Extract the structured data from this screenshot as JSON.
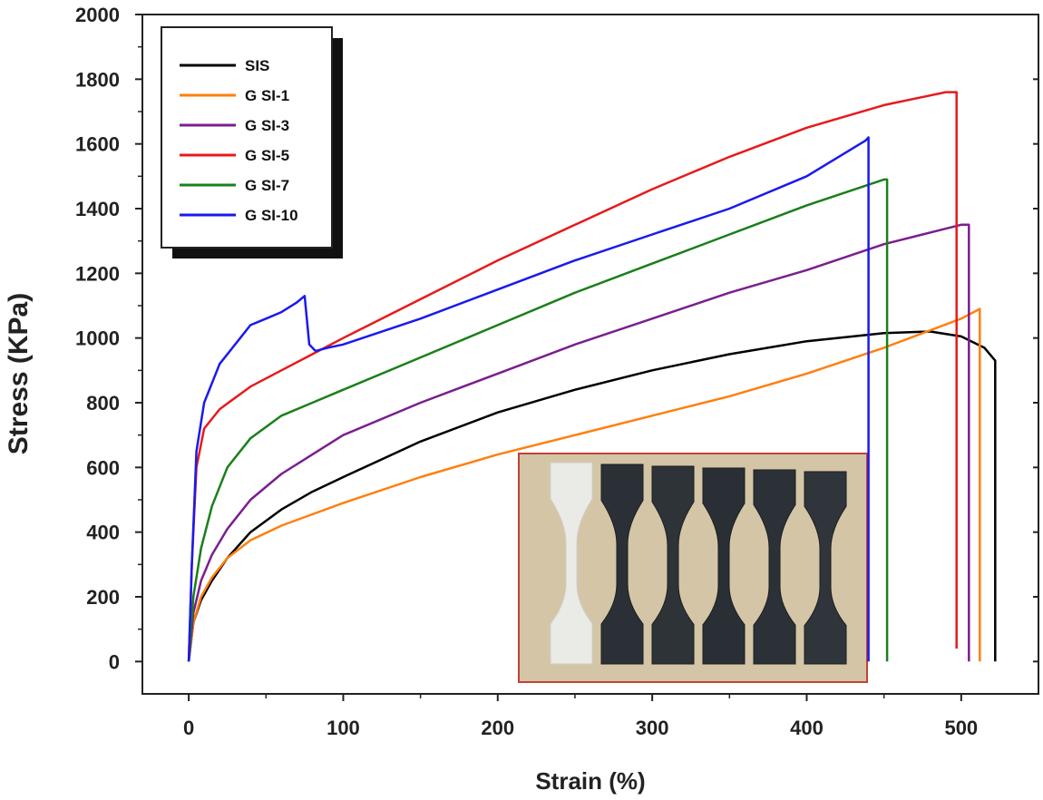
{
  "chart_data": {
    "type": "line",
    "title": "",
    "xlabel": "Strain (%)",
    "ylabel": "Stress (KPa)",
    "xlim": [
      -30,
      550
    ],
    "ylim": [
      -100,
      2000
    ],
    "xticks": [
      0,
      100,
      200,
      300,
      400,
      500
    ],
    "yticks": [
      0,
      200,
      400,
      600,
      800,
      1000,
      1200,
      1400,
      1600,
      1800,
      2000
    ],
    "grid": false,
    "legend_position": "top-left",
    "series": [
      {
        "name": "SIS",
        "color": "#000000",
        "x": [
          0,
          3,
          8,
          15,
          25,
          40,
          60,
          80,
          100,
          150,
          200,
          250,
          300,
          350,
          400,
          450,
          480,
          500,
          515,
          522,
          522
        ],
        "y": [
          0,
          120,
          190,
          250,
          320,
          400,
          470,
          525,
          570,
          680,
          770,
          840,
          900,
          950,
          990,
          1015,
          1020,
          1005,
          970,
          930,
          0
        ]
      },
      {
        "name": "G SI-1",
        "color": "#ff7f0e",
        "x": [
          0,
          3,
          8,
          15,
          25,
          40,
          60,
          80,
          100,
          150,
          200,
          250,
          300,
          350,
          400,
          450,
          500,
          512,
          512
        ],
        "y": [
          0,
          120,
          200,
          260,
          320,
          375,
          420,
          455,
          490,
          570,
          640,
          700,
          760,
          820,
          890,
          970,
          1060,
          1090,
          0
        ]
      },
      {
        "name": "G SI-3",
        "color": "#7b1e8e",
        "x": [
          0,
          3,
          8,
          15,
          25,
          40,
          60,
          80,
          100,
          150,
          200,
          250,
          300,
          350,
          400,
          450,
          500,
          505,
          505
        ],
        "y": [
          0,
          150,
          250,
          330,
          410,
          500,
          580,
          640,
          700,
          800,
          890,
          980,
          1060,
          1140,
          1210,
          1290,
          1350,
          1350,
          0
        ]
      },
      {
        "name": "G SI-5",
        "color": "#e8191b",
        "x": [
          0,
          2,
          5,
          10,
          20,
          40,
          60,
          80,
          100,
          150,
          200,
          250,
          300,
          350,
          400,
          450,
          490,
          497,
          497
        ],
        "y": [
          0,
          300,
          600,
          720,
          780,
          850,
          900,
          950,
          1000,
          1120,
          1240,
          1350,
          1460,
          1560,
          1650,
          1720,
          1760,
          1760,
          40
        ]
      },
      {
        "name": "G SI-7",
        "color": "#1a7f1a",
        "x": [
          0,
          3,
          8,
          15,
          25,
          40,
          60,
          80,
          100,
          150,
          200,
          250,
          300,
          350,
          400,
          450,
          452,
          452
        ],
        "y": [
          0,
          200,
          350,
          480,
          600,
          690,
          760,
          800,
          840,
          940,
          1040,
          1140,
          1230,
          1320,
          1410,
          1490,
          1490,
          0
        ]
      },
      {
        "name": "G SI-10",
        "color": "#1a1aee",
        "x": [
          0,
          2,
          5,
          10,
          20,
          30,
          40,
          50,
          60,
          70,
          75,
          78,
          82,
          90,
          100,
          150,
          200,
          250,
          300,
          350,
          400,
          438,
          440,
          440
        ],
        "y": [
          0,
          300,
          650,
          800,
          920,
          980,
          1040,
          1060,
          1080,
          1110,
          1130,
          980,
          960,
          970,
          980,
          1060,
          1150,
          1240,
          1320,
          1400,
          1500,
          1610,
          1620,
          0
        ]
      }
    ],
    "inset_photo": {
      "description_present": true,
      "specimens": [
        {
          "color": "#eaeae6"
        },
        {
          "color": "#2b3036"
        },
        {
          "color": "#2e3338"
        },
        {
          "color": "#2a2f35"
        },
        {
          "color": "#2c3137"
        },
        {
          "color": "#30353b"
        }
      ],
      "background_color": "#d4c5a6",
      "border_color": "#c24236"
    }
  }
}
